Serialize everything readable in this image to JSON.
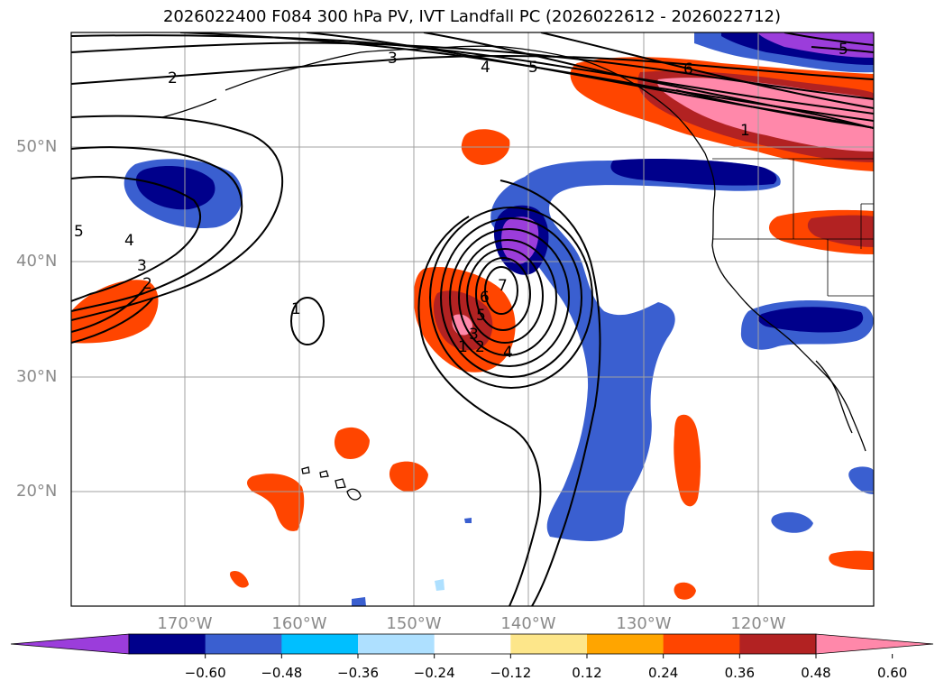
{
  "title": "2026022400 F084 300 hPa PV, IVT Landfall PC (2026022612 - 2026022712)",
  "lat_labels": [
    "50°N",
    "40°N",
    "30°N",
    "20°N"
  ],
  "lon_labels": [
    "170°W",
    "160°W",
    "150°W",
    "140°W",
    "130°W",
    "120°W"
  ],
  "colorbar": {
    "ticks": [
      "−0.60",
      "−0.48",
      "−0.36",
      "−0.24",
      "−0.12",
      "0.12",
      "0.24",
      "0.36",
      "0.48",
      "0.60"
    ],
    "colors": [
      "#9b3ddb",
      "#00008b",
      "#3a5fd0",
      "#00bfff",
      "#aee0ff",
      "#ffffff",
      "#fde68a",
      "#ffa500",
      "#ff4500",
      "#b22222",
      "#ff88aa"
    ]
  },
  "contour_labels": [
    "2",
    "3",
    "4",
    "5",
    "6",
    "5",
    "1",
    "4",
    "3",
    "2",
    "5",
    "1",
    "7",
    "6",
    "5",
    "4",
    "3",
    "2",
    "1"
  ]
}
